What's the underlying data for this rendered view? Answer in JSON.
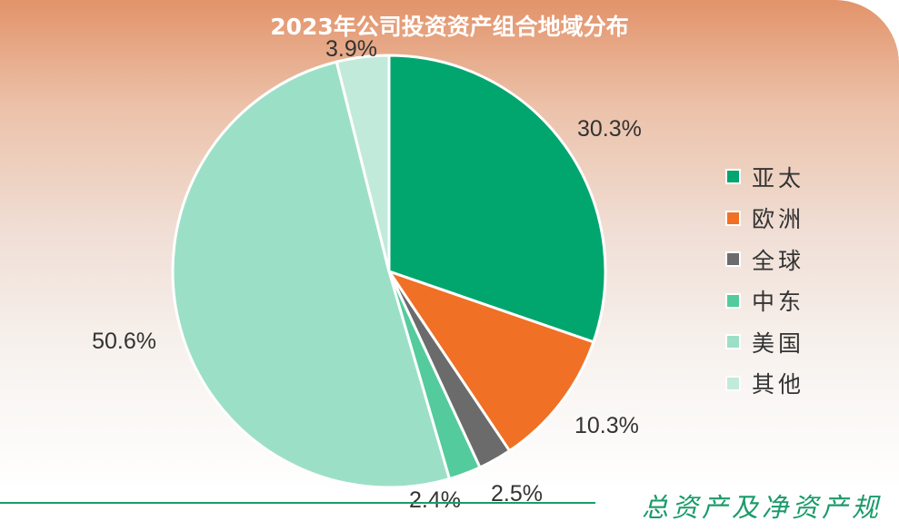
{
  "chart_data": {
    "type": "pie",
    "title": "2023年公司投资资产组合地域分布",
    "start_angle_deg": 0,
    "direction": "clockwise",
    "slices": [
      {
        "label": "亚太",
        "value": 30.3,
        "display": "30.3%",
        "color": "#00a66e"
      },
      {
        "label": "欧洲",
        "value": 10.3,
        "display": "10.3%",
        "color": "#f07025"
      },
      {
        "label": "全球",
        "value": 2.5,
        "display": "2.5%",
        "color": "#6b6b6b"
      },
      {
        "label": "中东",
        "value": 2.4,
        "display": "2.4%",
        "color": "#54cb9c"
      },
      {
        "label": "美国",
        "value": 50.6,
        "display": "50.6%",
        "color": "#9cdfc7"
      },
      {
        "label": "其他",
        "value": 3.9,
        "display": "3.9%",
        "color": "#c2eadb"
      }
    ],
    "legend_position": "right"
  },
  "footer_text": "总资产及净资产规"
}
